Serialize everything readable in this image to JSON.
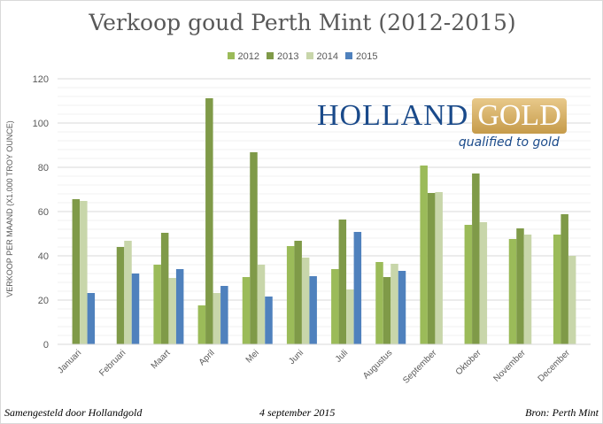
{
  "chart_data": {
    "type": "bar",
    "title": "Verkoop goud Perth Mint (2012-2015)",
    "ylabel": "VERKOOP PER MAAND (X1.000 TROY OUNCE)",
    "xlabel": "",
    "ylim": [
      0,
      120
    ],
    "yticks": [
      0,
      20,
      40,
      60,
      80,
      100,
      120
    ],
    "grid": true,
    "legend": "top",
    "categories": [
      "Januari",
      "Februari",
      "Maart",
      "April",
      "Mei",
      "Juni",
      "Juli",
      "Augustus",
      "September",
      "Oktober",
      "November",
      "December"
    ],
    "series": [
      {
        "name": "2012",
        "color": "#9bbb59",
        "values": [
          null,
          null,
          36,
          17.6,
          30.4,
          44.4,
          34,
          37.2,
          80.8,
          54,
          47.6,
          49.6
        ]
      },
      {
        "name": "2013",
        "color": "#7f9a48",
        "values": [
          65.6,
          44,
          50.4,
          111.2,
          86.8,
          46.8,
          56.4,
          30.4,
          68.4,
          77.2,
          52.4,
          58.8
        ]
      },
      {
        "name": "2014",
        "color": "#c8d6aa",
        "values": [
          64.8,
          46.8,
          30,
          23.2,
          36,
          39.2,
          24.8,
          36.4,
          68.8,
          55.2,
          49.6,
          40
        ]
      },
      {
        "name": "2015",
        "color": "#4f81bd",
        "values": [
          23.2,
          32,
          34,
          26.4,
          21.6,
          30.8,
          50.8,
          33.2,
          null,
          null,
          null,
          null
        ]
      }
    ]
  },
  "logo": {
    "word1": "HOLLAND",
    "word2": "GOLD",
    "tagline": "qualified to gold"
  },
  "footer": {
    "left": "Samengesteld door Hollandgold",
    "center": "4 september 2015",
    "right": "Bron: Perth Mint"
  }
}
